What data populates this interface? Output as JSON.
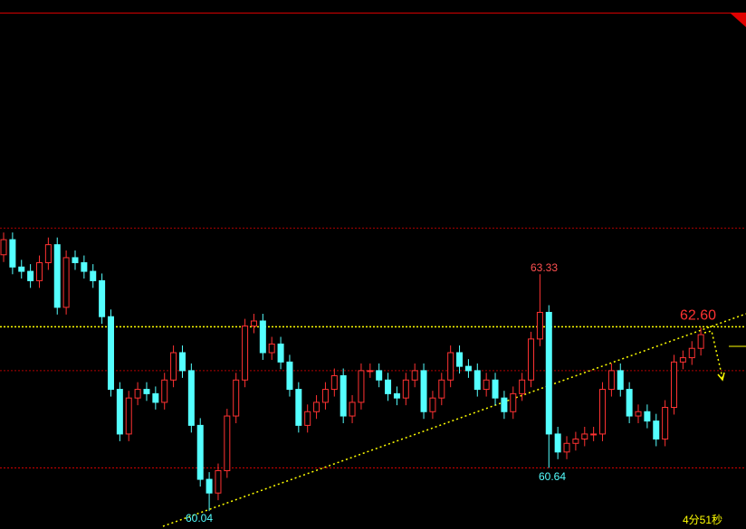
{
  "chart_data": {
    "type": "candlestick",
    "up_color": "#ff3232",
    "down_color": "#54ffff",
    "ylim": [
      59.79,
      67.14
    ],
    "annotations": [
      "63.33",
      "60.64",
      "60.04"
    ],
    "countdown": "4分51秒",
    "hlines": [
      {
        "value": 66.96,
        "color": "#e00000",
        "style": "solid"
      },
      {
        "value": 63.97,
        "color": "#b00000",
        "style": "dotted"
      },
      {
        "value": 62.6,
        "label": "62.60",
        "color": "#ffff00",
        "style": "dotted"
      },
      {
        "value": 61.99,
        "color": "#b00000",
        "style": "dotted"
      },
      {
        "value": 60.64,
        "color": "#e00000",
        "style": "dotted"
      }
    ],
    "open": [
      63.6,
      63.81,
      63.43,
      63.37,
      63.24,
      63.49,
      63.74,
      62.87,
      63.56,
      63.49,
      63.37,
      63.24,
      62.74,
      61.73,
      61.11,
      61.61,
      61.73,
      61.67,
      61.55,
      61.86,
      62.24,
      61.99,
      61.23,
      60.48,
      60.29,
      60.6,
      61.36,
      61.86,
      62.61,
      62.68,
      62.24,
      62.36,
      62.11,
      61.73,
      61.23,
      61.42,
      61.55,
      61.73,
      61.92,
      61.36,
      61.55,
      61.99,
      61.99,
      61.86,
      61.67,
      61.61,
      61.86,
      61.99,
      61.42,
      61.61,
      61.86,
      62.24,
      62.05,
      61.99,
      61.73,
      61.86,
      61.61,
      61.42,
      61.67,
      61.86,
      62.43,
      62.8,
      61.11,
      60.86,
      60.98,
      61.04,
      61.11,
      61.11,
      61.73,
      61.99,
      61.73,
      61.36,
      61.42,
      61.29,
      61.04,
      61.48,
      62.11,
      62.17,
      62.3
    ],
    "high": [
      63.91,
      63.91,
      63.53,
      63.47,
      63.59,
      63.84,
      63.84,
      63.66,
      63.66,
      63.59,
      63.47,
      63.34,
      62.84,
      61.83,
      61.71,
      61.83,
      61.83,
      61.77,
      61.96,
      62.34,
      62.34,
      62.09,
      61.33,
      60.58,
      60.7,
      61.46,
      61.96,
      62.71,
      62.78,
      62.78,
      62.46,
      62.46,
      62.21,
      61.83,
      61.52,
      61.65,
      61.83,
      62.02,
      62.02,
      61.65,
      62.09,
      62.09,
      62.09,
      61.96,
      61.77,
      61.96,
      62.09,
      62.09,
      61.71,
      61.96,
      62.34,
      62.34,
      62.15,
      62.09,
      61.96,
      61.96,
      61.71,
      61.77,
      61.96,
      62.53,
      63.33,
      62.9,
      61.21,
      61.08,
      61.14,
      61.21,
      61.21,
      61.83,
      62.09,
      62.09,
      61.83,
      61.52,
      61.52,
      61.39,
      61.58,
      62.21,
      62.27,
      62.4,
      62.59
    ],
    "low": [
      63.5,
      63.33,
      63.27,
      63.14,
      63.14,
      63.39,
      62.77,
      62.77,
      63.39,
      63.27,
      63.14,
      62.64,
      61.63,
      61.01,
      61.01,
      61.51,
      61.57,
      61.45,
      61.45,
      61.76,
      61.89,
      61.13,
      60.38,
      60.04,
      60.19,
      60.5,
      61.26,
      61.76,
      62.51,
      62.14,
      62.14,
      62.01,
      61.63,
      61.13,
      61.13,
      61.32,
      61.45,
      61.63,
      61.26,
      61.26,
      61.45,
      61.89,
      61.76,
      61.57,
      61.51,
      61.51,
      61.76,
      61.32,
      61.32,
      61.51,
      61.76,
      61.95,
      61.89,
      61.63,
      61.63,
      61.51,
      61.32,
      61.32,
      61.57,
      61.76,
      62.33,
      60.64,
      60.76,
      60.76,
      60.88,
      60.94,
      61.01,
      61.01,
      61.63,
      61.63,
      61.26,
      61.26,
      61.19,
      60.94,
      60.94,
      61.38,
      62.01,
      62.07,
      62.2
    ],
    "close": [
      63.81,
      63.43,
      63.37,
      63.24,
      63.49,
      63.74,
      62.87,
      63.56,
      63.49,
      63.37,
      63.24,
      62.74,
      61.73,
      61.11,
      61.61,
      61.73,
      61.67,
      61.55,
      61.86,
      62.24,
      61.99,
      61.23,
      60.48,
      60.29,
      60.6,
      61.36,
      61.86,
      62.61,
      62.68,
      62.24,
      62.36,
      62.11,
      61.73,
      61.23,
      61.42,
      61.55,
      61.73,
      61.92,
      61.36,
      61.55,
      61.99,
      61.99,
      61.86,
      61.67,
      61.61,
      61.86,
      61.99,
      61.42,
      61.61,
      61.86,
      62.24,
      62.05,
      61.99,
      61.73,
      61.86,
      61.61,
      61.42,
      61.67,
      61.86,
      62.43,
      62.8,
      61.11,
      60.86,
      60.98,
      61.04,
      61.11,
      61.11,
      61.73,
      61.99,
      61.73,
      61.36,
      61.42,
      61.29,
      61.04,
      61.48,
      62.11,
      62.17,
      62.3,
      62.49
    ]
  }
}
